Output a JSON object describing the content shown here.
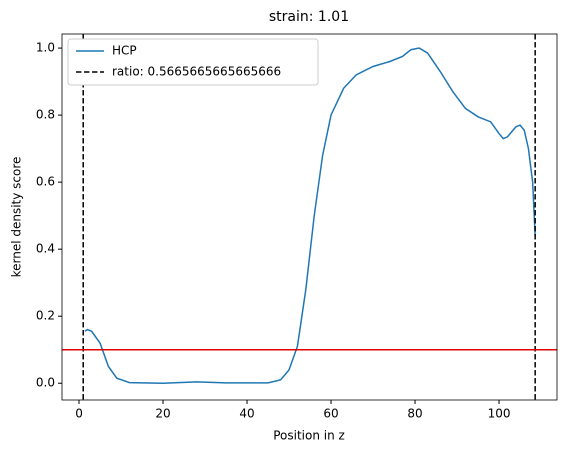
{
  "chart_data": {
    "type": "line",
    "title": "strain: 1.01",
    "xlabel": "Position in z",
    "ylabel": "kernel density score",
    "xlim": [
      -4.05,
      113.8
    ],
    "ylim": [
      -0.05,
      1.042
    ],
    "xticks": [
      0,
      20,
      40,
      60,
      80,
      100
    ],
    "yticks": [
      {
        "value": 0.0,
        "label": "0.0"
      },
      0.2,
      0.4,
      0.6,
      0.8,
      {
        "value": 1.0,
        "label": "1.0"
      }
    ],
    "series": [
      {
        "name": "HCP",
        "color": "#1f77b4",
        "x": [
          1.4,
          2,
          3,
          5,
          7,
          9,
          12,
          20,
          28,
          35,
          45,
          48,
          50,
          52,
          54,
          56,
          58,
          60,
          63,
          66,
          70,
          74,
          77,
          79,
          81,
          83,
          86,
          89,
          92,
          95,
          98,
          100,
          101,
          102,
          104,
          105,
          106,
          107,
          108,
          108.6
        ],
        "values": [
          0.155,
          0.16,
          0.155,
          0.12,
          0.05,
          0.015,
          0.002,
          0,
          0.004,
          0.001,
          0.001,
          0.01,
          0.04,
          0.11,
          0.28,
          0.5,
          0.68,
          0.8,
          0.88,
          0.92,
          0.945,
          0.96,
          0.975,
          0.995,
          1.0,
          0.985,
          0.93,
          0.87,
          0.82,
          0.795,
          0.78,
          0.745,
          0.73,
          0.735,
          0.765,
          0.77,
          0.755,
          0.7,
          0.6,
          0.44
        ]
      }
    ],
    "vlines": {
      "name": "ratio: 0.5665665665665666",
      "color": "#000000",
      "values": [
        1,
        108.6
      ]
    },
    "hline": {
      "value": 0.1,
      "color": "#e00000"
    },
    "legend": "upper left"
  }
}
